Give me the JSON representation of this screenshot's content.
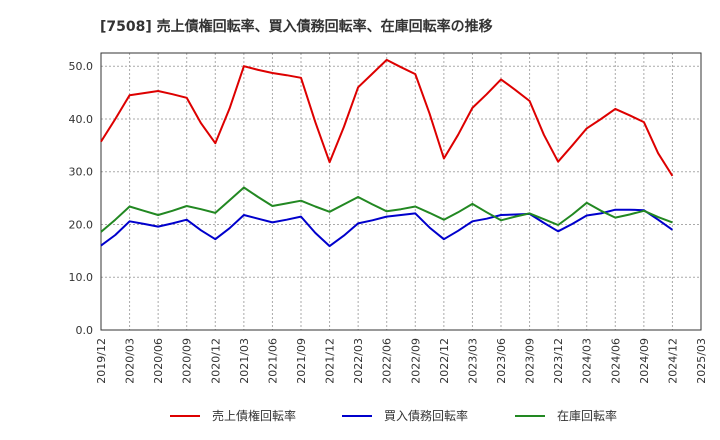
{
  "chart_data": {
    "type": "line",
    "title": "[7508]  売上債権回転率、買入債務回転率、在庫回転率の推移",
    "xlabel": "",
    "ylabel": "",
    "ylim": [
      0,
      52.5
    ],
    "yticks": [
      0,
      10,
      20,
      30,
      40,
      50
    ],
    "ytick_labels": [
      "0.0",
      "10.0",
      "20.0",
      "30.0",
      "40.0",
      "50.0"
    ],
    "grid": true,
    "legend_position": "bottom",
    "x_labels": [
      "2019/12",
      "2020/03",
      "2020/06",
      "2020/09",
      "2020/12",
      "2021/03",
      "2021/06",
      "2021/09",
      "2021/12",
      "2022/03",
      "2022/06",
      "2022/09",
      "2022/12",
      "2023/03",
      "2023/06",
      "2023/09",
      "2023/12",
      "2024/03",
      "2024/06",
      "2024/09",
      "2024/12",
      "2025/03"
    ],
    "series": [
      {
        "name": "売上債権回転率",
        "color": "#dd0000",
        "values": [
          35.7,
          40.0,
          44.5,
          44.9,
          45.3,
          44.7,
          44.0,
          39.2,
          35.4,
          42.0,
          50.0,
          49.3,
          48.7,
          48.3,
          47.8,
          39.4,
          31.8,
          38.5,
          46.0,
          48.6,
          51.2,
          49.8,
          48.5,
          41.0,
          32.5,
          37.0,
          42.1,
          44.7,
          47.5,
          45.5,
          43.4,
          37.0,
          31.9,
          35.0,
          38.2,
          40.0,
          41.9,
          40.7,
          39.4,
          33.5,
          29.2
        ],
        "estimated": true
      },
      {
        "name": "買入債務回転率",
        "color": "#0000cc",
        "values": [
          16.0,
          18.0,
          20.6,
          20.1,
          19.6,
          20.2,
          20.9,
          18.9,
          17.2,
          19.3,
          21.8,
          21.1,
          20.4,
          20.9,
          21.5,
          18.4,
          15.9,
          17.9,
          20.2,
          20.8,
          21.5,
          21.8,
          22.1,
          19.4,
          17.2,
          18.8,
          20.6,
          21.1,
          21.8,
          21.9,
          22.0,
          20.3,
          18.7,
          20.1,
          21.7,
          22.1,
          22.8,
          22.8,
          22.7,
          20.9,
          19.0
        ],
        "estimated": true
      },
      {
        "name": "在庫回転率",
        "color": "#228822",
        "values": [
          18.6,
          20.9,
          23.4,
          22.6,
          21.8,
          22.6,
          23.5,
          22.9,
          22.2,
          24.6,
          27.0,
          25.2,
          23.5,
          24.0,
          24.5,
          23.4,
          22.4,
          23.8,
          25.2,
          23.8,
          22.5,
          22.9,
          23.4,
          22.2,
          20.9,
          22.3,
          23.9,
          22.3,
          20.8,
          21.5,
          22.1,
          21.0,
          19.9,
          21.9,
          24.1,
          22.6,
          21.3,
          21.9,
          22.6,
          21.4,
          20.4
        ],
        "estimated": true
      }
    ]
  }
}
